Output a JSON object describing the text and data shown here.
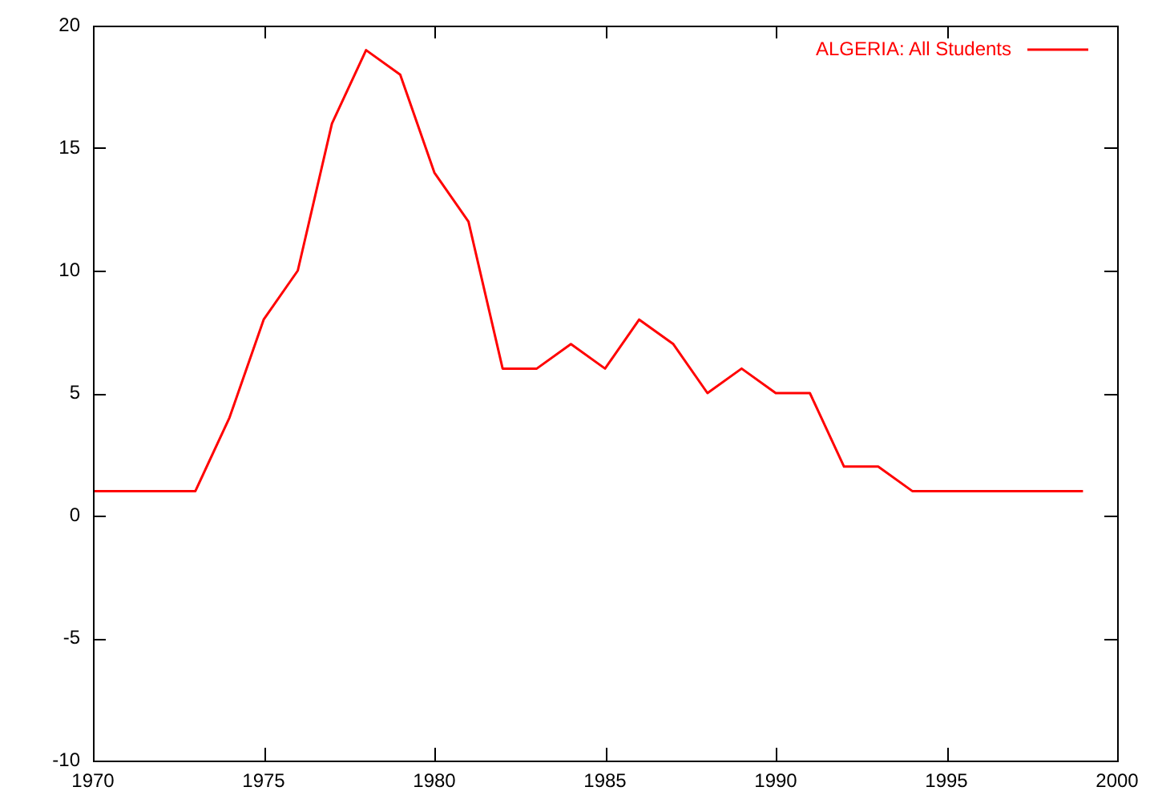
{
  "chart_data": {
    "type": "line",
    "x": [
      1970,
      1971,
      1972,
      1973,
      1974,
      1975,
      1976,
      1977,
      1978,
      1979,
      1980,
      1981,
      1982,
      1983,
      1984,
      1985,
      1986,
      1987,
      1988,
      1989,
      1990,
      1991,
      1992,
      1993,
      1994,
      1995,
      1996,
      1997,
      1998,
      1999
    ],
    "series": [
      {
        "name": "ALGERIA: All Students",
        "color": "#ff0000",
        "values": [
          1,
          1,
          1,
          1,
          4,
          8,
          10,
          16,
          19,
          18,
          14,
          12,
          6,
          6,
          7,
          6,
          8,
          7,
          5,
          6,
          5,
          5,
          2,
          2,
          1,
          1,
          1,
          1,
          1,
          1
        ]
      }
    ],
    "xlim": [
      1970,
      2000
    ],
    "xticks": [
      1970,
      1975,
      1980,
      1985,
      1990,
      1995,
      2000
    ],
    "ylim": [
      -10,
      20
    ],
    "yticks": [
      -10,
      -5,
      0,
      5,
      10,
      15,
      20
    ],
    "legend": "top right",
    "marker": "none",
    "line_style": "solid"
  }
}
